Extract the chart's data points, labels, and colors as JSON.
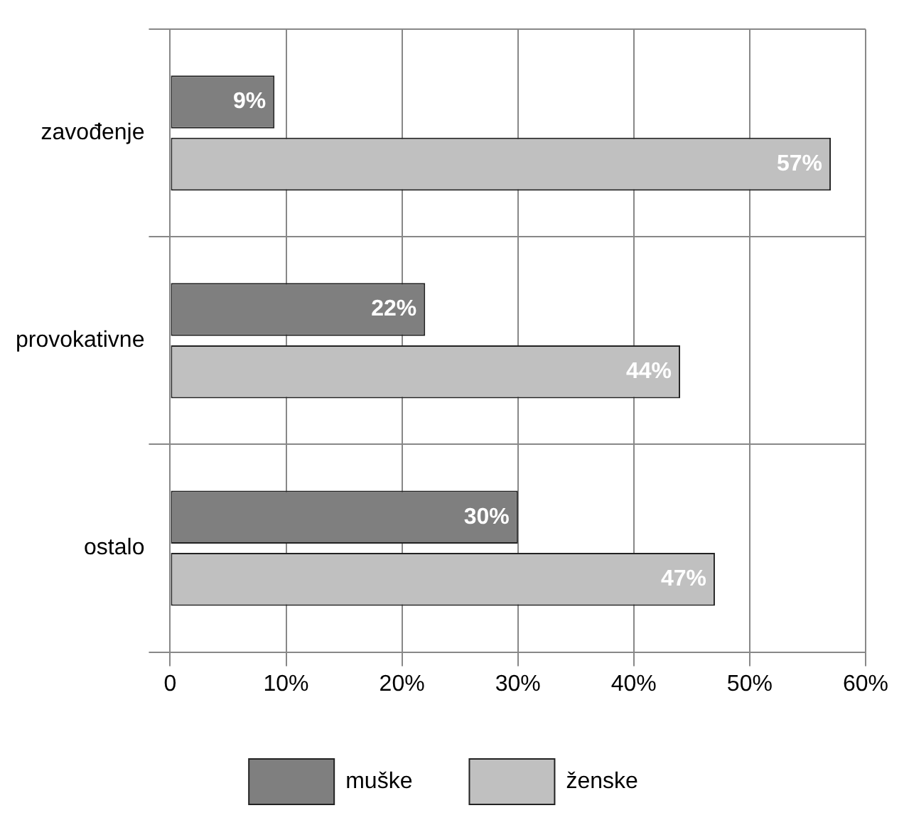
{
  "chart_data": {
    "type": "bar",
    "orientation": "horizontal",
    "categories": [
      "zavođenje",
      "provokativne",
      "ostalo"
    ],
    "series": [
      {
        "name": "muške",
        "color": "#7f7f7f",
        "values": [
          9,
          22,
          30
        ],
        "value_labels": [
          "9%",
          "22%",
          "30%"
        ]
      },
      {
        "name": "ženske",
        "color": "#c0c0c0",
        "values": [
          57,
          44,
          47
        ],
        "value_labels": [
          "57%",
          "44%",
          "47%"
        ]
      }
    ],
    "xlim": [
      0,
      60
    ],
    "xticks": [
      0,
      {
        "value": 10,
        "label": "10%"
      },
      {
        "value": 20,
        "label": "20%"
      },
      {
        "value": 30,
        "label": "30%"
      },
      {
        "value": 40,
        "label": "40%"
      },
      {
        "value": 50,
        "label": "50%"
      },
      {
        "value": 60,
        "label": "60%"
      }
    ],
    "grid": true,
    "legend": "bottom"
  }
}
